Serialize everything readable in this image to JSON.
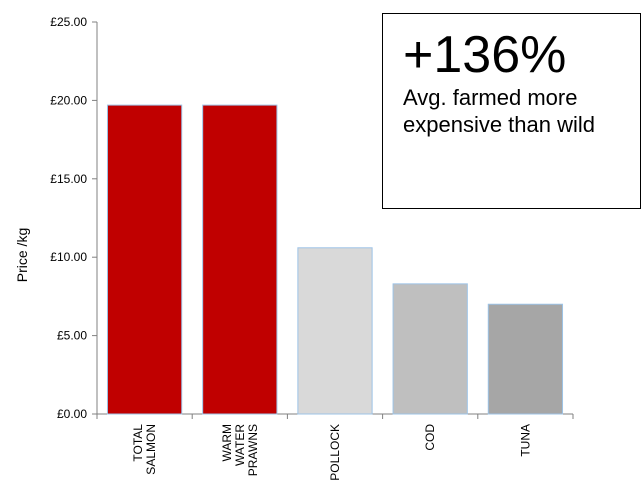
{
  "chart_data": {
    "type": "bar",
    "categories": [
      [
        "TOTAL",
        "SALMON"
      ],
      [
        "WARM",
        "WATER",
        "PRAWNS"
      ],
      [
        "POLLOCK"
      ],
      [
        "COD"
      ],
      [
        "TUNA"
      ]
    ],
    "values": [
      19.7,
      19.7,
      10.6,
      8.3,
      7.0
    ],
    "bar_colors": [
      "#c00000",
      "#c00000",
      "#d9d9d9",
      "#bfbfbf",
      "#a6a6a6"
    ],
    "bar_border_color": "#9dc3e6",
    "ylabel": "Price /kg",
    "ylim": [
      0,
      25
    ],
    "yticks": [
      "£0.00",
      "£5.00",
      "£10.00",
      "£15.00",
      "£20.00",
      "£25.00"
    ],
    "grid": false,
    "legend": "none"
  },
  "callout": {
    "headline": "+136%",
    "body": "Avg. farmed more expensive than wild"
  }
}
